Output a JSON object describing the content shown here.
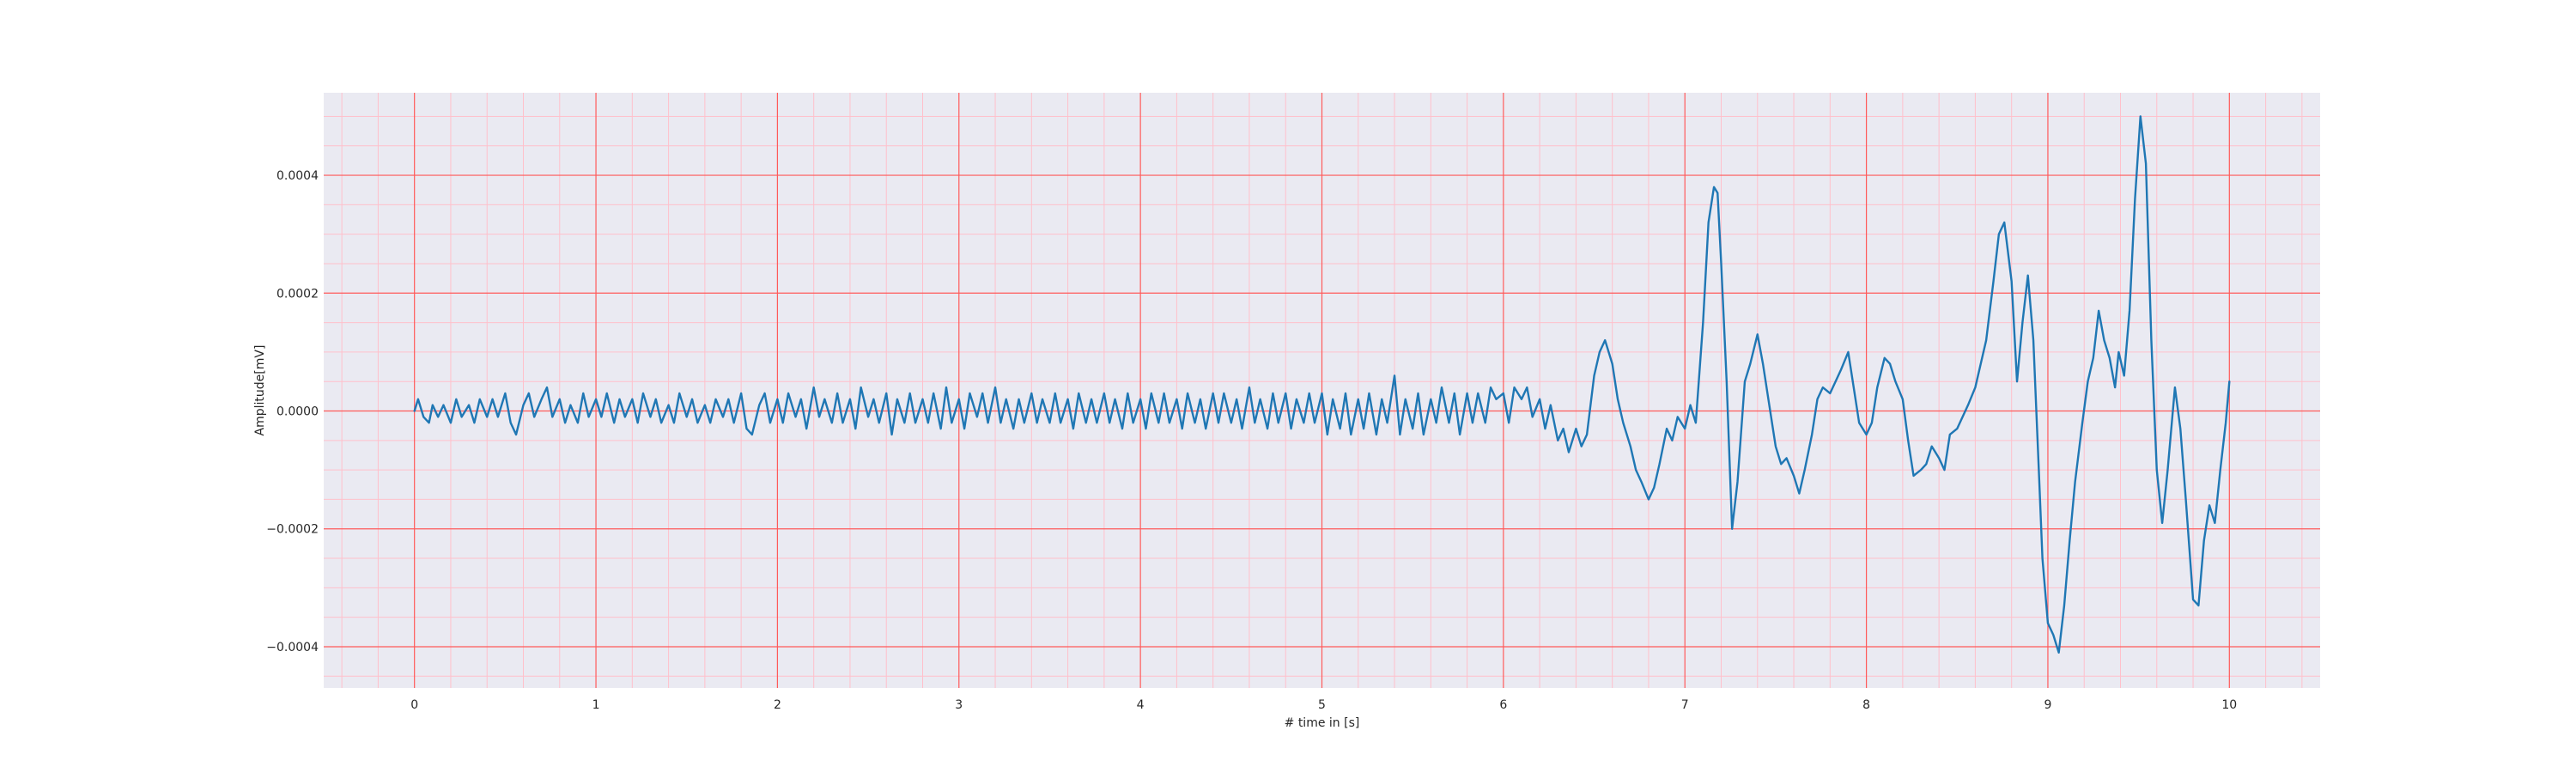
{
  "chart_data": {
    "type": "line",
    "title": "",
    "xlabel": "# time in [s]",
    "ylabel": "Amplitude[mV]",
    "xlim": [
      -0.5,
      10.5
    ],
    "ylim": [
      -0.00047,
      0.00054
    ],
    "x_ticks": [
      0,
      1,
      2,
      3,
      4,
      5,
      6,
      7,
      8,
      9,
      10
    ],
    "x_tick_labels": [
      "0",
      "1",
      "2",
      "3",
      "4",
      "5",
      "6",
      "7",
      "8",
      "9",
      "10"
    ],
    "y_ticks": [
      -0.0004,
      -0.0002,
      0.0,
      0.0002,
      0.0004
    ],
    "y_tick_labels": [
      "−0.0004",
      "−0.0002",
      "0.0000",
      "0.0002",
      "0.0004"
    ],
    "x_minor_step": 0.2,
    "y_minor_step": 5e-05,
    "grid": true,
    "background_color": "#eaeaf2",
    "major_grid_color": "#ff5a5a",
    "minor_grid_color": "#ffc0cb",
    "line_color": "#1f77b4",
    "series": [
      {
        "name": "",
        "points": [
          [
            0.0,
            0.0
          ],
          [
            0.02,
            2e-05
          ],
          [
            0.05,
            -1e-05
          ],
          [
            0.08,
            -2e-05
          ],
          [
            0.1,
            1e-05
          ],
          [
            0.13,
            -1e-05
          ],
          [
            0.16,
            1e-05
          ],
          [
            0.2,
            -2e-05
          ],
          [
            0.23,
            2e-05
          ],
          [
            0.26,
            -1e-05
          ],
          [
            0.3,
            1e-05
          ],
          [
            0.33,
            -2e-05
          ],
          [
            0.36,
            2e-05
          ],
          [
            0.4,
            -1e-05
          ],
          [
            0.43,
            2e-05
          ],
          [
            0.46,
            -1e-05
          ],
          [
            0.5,
            3e-05
          ],
          [
            0.53,
            -2e-05
          ],
          [
            0.56,
            -4e-05
          ],
          [
            0.6,
            1e-05
          ],
          [
            0.63,
            3e-05
          ],
          [
            0.66,
            -1e-05
          ],
          [
            0.7,
            2e-05
          ],
          [
            0.73,
            4e-05
          ],
          [
            0.76,
            -1e-05
          ],
          [
            0.8,
            2e-05
          ],
          [
            0.83,
            -2e-05
          ],
          [
            0.86,
            1e-05
          ],
          [
            0.9,
            -2e-05
          ],
          [
            0.93,
            3e-05
          ],
          [
            0.96,
            -1e-05
          ],
          [
            1.0,
            2e-05
          ],
          [
            1.03,
            -1e-05
          ],
          [
            1.06,
            3e-05
          ],
          [
            1.1,
            -2e-05
          ],
          [
            1.13,
            2e-05
          ],
          [
            1.16,
            -1e-05
          ],
          [
            1.2,
            2e-05
          ],
          [
            1.23,
            -2e-05
          ],
          [
            1.26,
            3e-05
          ],
          [
            1.3,
            -1e-05
          ],
          [
            1.33,
            2e-05
          ],
          [
            1.36,
            -2e-05
          ],
          [
            1.4,
            1e-05
          ],
          [
            1.43,
            -2e-05
          ],
          [
            1.46,
            3e-05
          ],
          [
            1.5,
            -1e-05
          ],
          [
            1.53,
            2e-05
          ],
          [
            1.56,
            -2e-05
          ],
          [
            1.6,
            1e-05
          ],
          [
            1.63,
            -2e-05
          ],
          [
            1.66,
            2e-05
          ],
          [
            1.7,
            -1e-05
          ],
          [
            1.73,
            2e-05
          ],
          [
            1.76,
            -2e-05
          ],
          [
            1.8,
            3e-05
          ],
          [
            1.83,
            -3e-05
          ],
          [
            1.86,
            -4e-05
          ],
          [
            1.9,
            1e-05
          ],
          [
            1.93,
            3e-05
          ],
          [
            1.96,
            -2e-05
          ],
          [
            2.0,
            2e-05
          ],
          [
            2.03,
            -2e-05
          ],
          [
            2.06,
            3e-05
          ],
          [
            2.1,
            -1e-05
          ],
          [
            2.13,
            2e-05
          ],
          [
            2.16,
            -3e-05
          ],
          [
            2.2,
            4e-05
          ],
          [
            2.23,
            -1e-05
          ],
          [
            2.26,
            2e-05
          ],
          [
            2.3,
            -2e-05
          ],
          [
            2.33,
            3e-05
          ],
          [
            2.36,
            -2e-05
          ],
          [
            2.4,
            2e-05
          ],
          [
            2.43,
            -3e-05
          ],
          [
            2.46,
            4e-05
          ],
          [
            2.5,
            -1e-05
          ],
          [
            2.53,
            2e-05
          ],
          [
            2.56,
            -2e-05
          ],
          [
            2.6,
            3e-05
          ],
          [
            2.63,
            -4e-05
          ],
          [
            2.66,
            2e-05
          ],
          [
            2.7,
            -2e-05
          ],
          [
            2.73,
            3e-05
          ],
          [
            2.76,
            -2e-05
          ],
          [
            2.8,
            2e-05
          ],
          [
            2.83,
            -2e-05
          ],
          [
            2.86,
            3e-05
          ],
          [
            2.9,
            -3e-05
          ],
          [
            2.93,
            4e-05
          ],
          [
            2.96,
            -2e-05
          ],
          [
            3.0,
            2e-05
          ],
          [
            3.03,
            -3e-05
          ],
          [
            3.06,
            3e-05
          ],
          [
            3.1,
            -1e-05
          ],
          [
            3.13,
            3e-05
          ],
          [
            3.16,
            -2e-05
          ],
          [
            3.2,
            4e-05
          ],
          [
            3.23,
            -2e-05
          ],
          [
            3.26,
            2e-05
          ],
          [
            3.3,
            -3e-05
          ],
          [
            3.33,
            2e-05
          ],
          [
            3.36,
            -2e-05
          ],
          [
            3.4,
            3e-05
          ],
          [
            3.43,
            -2e-05
          ],
          [
            3.46,
            2e-05
          ],
          [
            3.5,
            -2e-05
          ],
          [
            3.53,
            3e-05
          ],
          [
            3.56,
            -2e-05
          ],
          [
            3.6,
            2e-05
          ],
          [
            3.63,
            -3e-05
          ],
          [
            3.66,
            3e-05
          ],
          [
            3.7,
            -2e-05
          ],
          [
            3.73,
            2e-05
          ],
          [
            3.76,
            -2e-05
          ],
          [
            3.8,
            3e-05
          ],
          [
            3.83,
            -2e-05
          ],
          [
            3.86,
            2e-05
          ],
          [
            3.9,
            -3e-05
          ],
          [
            3.93,
            3e-05
          ],
          [
            3.96,
            -2e-05
          ],
          [
            4.0,
            2e-05
          ],
          [
            4.03,
            -3e-05
          ],
          [
            4.06,
            3e-05
          ],
          [
            4.1,
            -2e-05
          ],
          [
            4.13,
            3e-05
          ],
          [
            4.16,
            -2e-05
          ],
          [
            4.2,
            2e-05
          ],
          [
            4.23,
            -3e-05
          ],
          [
            4.26,
            3e-05
          ],
          [
            4.3,
            -2e-05
          ],
          [
            4.33,
            2e-05
          ],
          [
            4.36,
            -3e-05
          ],
          [
            4.4,
            3e-05
          ],
          [
            4.43,
            -2e-05
          ],
          [
            4.46,
            3e-05
          ],
          [
            4.5,
            -2e-05
          ],
          [
            4.53,
            2e-05
          ],
          [
            4.56,
            -3e-05
          ],
          [
            4.6,
            4e-05
          ],
          [
            4.63,
            -2e-05
          ],
          [
            4.66,
            2e-05
          ],
          [
            4.7,
            -3e-05
          ],
          [
            4.73,
            3e-05
          ],
          [
            4.76,
            -2e-05
          ],
          [
            4.8,
            3e-05
          ],
          [
            4.83,
            -3e-05
          ],
          [
            4.86,
            2e-05
          ],
          [
            4.9,
            -2e-05
          ],
          [
            4.93,
            3e-05
          ],
          [
            4.96,
            -2e-05
          ],
          [
            5.0,
            3e-05
          ],
          [
            5.03,
            -4e-05
          ],
          [
            5.06,
            2e-05
          ],
          [
            5.1,
            -3e-05
          ],
          [
            5.13,
            3e-05
          ],
          [
            5.16,
            -4e-05
          ],
          [
            5.2,
            2e-05
          ],
          [
            5.23,
            -3e-05
          ],
          [
            5.26,
            3e-05
          ],
          [
            5.3,
            -4e-05
          ],
          [
            5.33,
            2e-05
          ],
          [
            5.36,
            -2e-05
          ],
          [
            5.4,
            6e-05
          ],
          [
            5.43,
            -4e-05
          ],
          [
            5.46,
            2e-05
          ],
          [
            5.5,
            -3e-05
          ],
          [
            5.53,
            3e-05
          ],
          [
            5.56,
            -4e-05
          ],
          [
            5.6,
            2e-05
          ],
          [
            5.63,
            -2e-05
          ],
          [
            5.66,
            4e-05
          ],
          [
            5.7,
            -2e-05
          ],
          [
            5.73,
            3e-05
          ],
          [
            5.76,
            -4e-05
          ],
          [
            5.8,
            3e-05
          ],
          [
            5.83,
            -2e-05
          ],
          [
            5.86,
            3e-05
          ],
          [
            5.9,
            -2e-05
          ],
          [
            5.93,
            4e-05
          ],
          [
            5.96,
            2e-05
          ],
          [
            6.0,
            3e-05
          ],
          [
            6.03,
            -2e-05
          ],
          [
            6.06,
            4e-05
          ],
          [
            6.1,
            2e-05
          ],
          [
            6.13,
            4e-05
          ],
          [
            6.16,
            -1e-05
          ],
          [
            6.2,
            2e-05
          ],
          [
            6.23,
            -3e-05
          ],
          [
            6.26,
            1e-05
          ],
          [
            6.3,
            -5e-05
          ],
          [
            6.33,
            -3e-05
          ],
          [
            6.36,
            -7e-05
          ],
          [
            6.4,
            -3e-05
          ],
          [
            6.43,
            -6e-05
          ],
          [
            6.46,
            -4e-05
          ],
          [
            6.5,
            6e-05
          ],
          [
            6.53,
            0.0001
          ],
          [
            6.56,
            0.00012
          ],
          [
            6.6,
            8e-05
          ],
          [
            6.63,
            2e-05
          ],
          [
            6.66,
            -2e-05
          ],
          [
            6.7,
            -6e-05
          ],
          [
            6.73,
            -0.0001
          ],
          [
            6.76,
            -0.00012
          ],
          [
            6.8,
            -0.00015
          ],
          [
            6.83,
            -0.00013
          ],
          [
            6.86,
            -9e-05
          ],
          [
            6.9,
            -3e-05
          ],
          [
            6.93,
            -5e-05
          ],
          [
            6.96,
            -1e-05
          ],
          [
            7.0,
            -3e-05
          ],
          [
            7.03,
            1e-05
          ],
          [
            7.06,
            -2e-05
          ],
          [
            7.1,
            0.00015
          ],
          [
            7.13,
            0.00032
          ],
          [
            7.16,
            0.00038
          ],
          [
            7.18,
            0.00037
          ],
          [
            7.2,
            0.00025
          ],
          [
            7.23,
            5e-05
          ],
          [
            7.26,
            -0.0002
          ],
          [
            7.29,
            -0.00012
          ],
          [
            7.33,
            5e-05
          ],
          [
            7.36,
            8e-05
          ],
          [
            7.4,
            0.00013
          ],
          [
            7.43,
            8e-05
          ],
          [
            7.46,
            2e-05
          ],
          [
            7.5,
            -6e-05
          ],
          [
            7.53,
            -9e-05
          ],
          [
            7.56,
            -8e-05
          ],
          [
            7.6,
            -0.00011
          ],
          [
            7.63,
            -0.00014
          ],
          [
            7.66,
            -0.0001
          ],
          [
            7.7,
            -4e-05
          ],
          [
            7.73,
            2e-05
          ],
          [
            7.76,
            4e-05
          ],
          [
            7.8,
            3e-05
          ],
          [
            7.83,
            5e-05
          ],
          [
            7.86,
            7e-05
          ],
          [
            7.9,
            0.0001
          ],
          [
            7.93,
            4e-05
          ],
          [
            7.96,
            -2e-05
          ],
          [
            8.0,
            -4e-05
          ],
          [
            8.03,
            -2e-05
          ],
          [
            8.06,
            4e-05
          ],
          [
            8.1,
            9e-05
          ],
          [
            8.13,
            8e-05
          ],
          [
            8.16,
            5e-05
          ],
          [
            8.2,
            2e-05
          ],
          [
            8.23,
            -5e-05
          ],
          [
            8.26,
            -0.00011
          ],
          [
            8.3,
            -0.0001
          ],
          [
            8.33,
            -9e-05
          ],
          [
            8.36,
            -6e-05
          ],
          [
            8.4,
            -8e-05
          ],
          [
            8.43,
            -0.0001
          ],
          [
            8.46,
            -4e-05
          ],
          [
            8.5,
            -3e-05
          ],
          [
            8.53,
            -1e-05
          ],
          [
            8.56,
            1e-05
          ],
          [
            8.6,
            4e-05
          ],
          [
            8.63,
            8e-05
          ],
          [
            8.66,
            0.00012
          ],
          [
            8.7,
            0.00022
          ],
          [
            8.73,
            0.0003
          ],
          [
            8.76,
            0.00032
          ],
          [
            8.8,
            0.00022
          ],
          [
            8.83,
            5e-05
          ],
          [
            8.86,
            0.00015
          ],
          [
            8.89,
            0.00023
          ],
          [
            8.92,
            0.00012
          ],
          [
            8.95,
            -0.0001
          ],
          [
            8.97,
            -0.00025
          ],
          [
            9.0,
            -0.00036
          ],
          [
            9.03,
            -0.00038
          ],
          [
            9.06,
            -0.00041
          ],
          [
            9.09,
            -0.00033
          ],
          [
            9.12,
            -0.00022
          ],
          [
            9.15,
            -0.00012
          ],
          [
            9.19,
            -2e-05
          ],
          [
            9.22,
            5e-05
          ],
          [
            9.25,
            9e-05
          ],
          [
            9.28,
            0.00017
          ],
          [
            9.31,
            0.00012
          ],
          [
            9.34,
            9e-05
          ],
          [
            9.37,
            4e-05
          ],
          [
            9.39,
            0.0001
          ],
          [
            9.42,
            6e-05
          ],
          [
            9.45,
            0.00017
          ],
          [
            9.48,
            0.00036
          ],
          [
            9.51,
            0.0005
          ],
          [
            9.54,
            0.00042
          ],
          [
            9.57,
            0.00012
          ],
          [
            9.6,
            -0.0001
          ],
          [
            9.63,
            -0.00019
          ],
          [
            9.66,
            -0.0001
          ],
          [
            9.7,
            4e-05
          ],
          [
            9.73,
            -3e-05
          ],
          [
            9.76,
            -0.00015
          ],
          [
            9.8,
            -0.00032
          ],
          [
            9.83,
            -0.00033
          ],
          [
            9.86,
            -0.00022
          ],
          [
            9.89,
            -0.00016
          ],
          [
            9.92,
            -0.00019
          ],
          [
            9.95,
            -0.0001
          ],
          [
            9.98,
            -2e-05
          ],
          [
            10.0,
            5e-05
          ]
        ]
      }
    ]
  }
}
